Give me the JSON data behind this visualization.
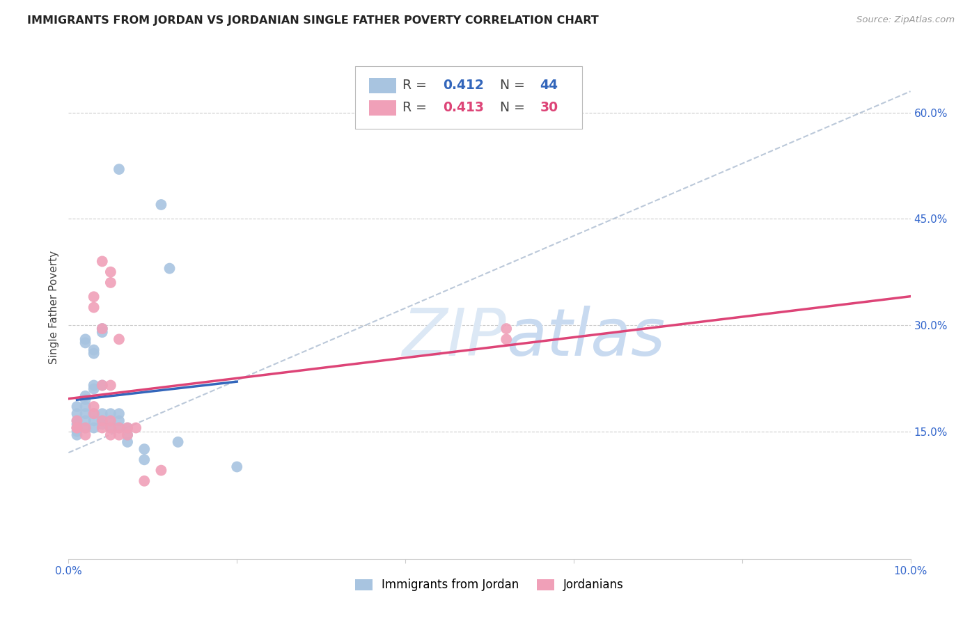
{
  "title": "IMMIGRANTS FROM JORDAN VS JORDANIAN SINGLE FATHER POVERTY CORRELATION CHART",
  "source": "Source: ZipAtlas.com",
  "ylabel": "Single Father Poverty",
  "legend_label_blue": "Immigrants from Jordan",
  "legend_label_pink": "Jordanians",
  "R_blue": 0.412,
  "N_blue": 44,
  "R_pink": 0.413,
  "N_pink": 30,
  "xlim": [
    0.0,
    0.1
  ],
  "ylim": [
    -0.03,
    0.68
  ],
  "x_ticks": [
    0.0,
    0.02,
    0.04,
    0.06,
    0.08,
    0.1
  ],
  "x_tick_labels": [
    "0.0%",
    "",
    "",
    "",
    "",
    "10.0%"
  ],
  "y_ticks": [
    0.15,
    0.3,
    0.45,
    0.6
  ],
  "y_tick_labels": [
    "15.0%",
    "30.0%",
    "45.0%",
    "60.0%"
  ],
  "blue_points": [
    [
      0.001,
      0.155
    ],
    [
      0.001,
      0.165
    ],
    [
      0.001,
      0.175
    ],
    [
      0.001,
      0.185
    ],
    [
      0.001,
      0.16
    ],
    [
      0.001,
      0.15
    ],
    [
      0.001,
      0.145
    ],
    [
      0.002,
      0.2
    ],
    [
      0.002,
      0.195
    ],
    [
      0.002,
      0.185
    ],
    [
      0.002,
      0.175
    ],
    [
      0.002,
      0.165
    ],
    [
      0.002,
      0.155
    ],
    [
      0.002,
      0.28
    ],
    [
      0.002,
      0.275
    ],
    [
      0.003,
      0.265
    ],
    [
      0.003,
      0.26
    ],
    [
      0.003,
      0.215
    ],
    [
      0.003,
      0.21
    ],
    [
      0.003,
      0.175
    ],
    [
      0.003,
      0.165
    ],
    [
      0.003,
      0.155
    ],
    [
      0.004,
      0.295
    ],
    [
      0.004,
      0.29
    ],
    [
      0.004,
      0.215
    ],
    [
      0.004,
      0.175
    ],
    [
      0.004,
      0.165
    ],
    [
      0.004,
      0.16
    ],
    [
      0.005,
      0.175
    ],
    [
      0.005,
      0.165
    ],
    [
      0.005,
      0.155
    ],
    [
      0.006,
      0.175
    ],
    [
      0.006,
      0.165
    ],
    [
      0.006,
      0.155
    ],
    [
      0.006,
      0.52
    ],
    [
      0.007,
      0.155
    ],
    [
      0.007,
      0.145
    ],
    [
      0.007,
      0.135
    ],
    [
      0.009,
      0.11
    ],
    [
      0.009,
      0.125
    ],
    [
      0.011,
      0.47
    ],
    [
      0.012,
      0.38
    ],
    [
      0.013,
      0.135
    ],
    [
      0.02,
      0.1
    ]
  ],
  "pink_points": [
    [
      0.001,
      0.155
    ],
    [
      0.001,
      0.165
    ],
    [
      0.001,
      0.155
    ],
    [
      0.002,
      0.155
    ],
    [
      0.002,
      0.145
    ],
    [
      0.003,
      0.34
    ],
    [
      0.003,
      0.325
    ],
    [
      0.003,
      0.185
    ],
    [
      0.003,
      0.175
    ],
    [
      0.004,
      0.165
    ],
    [
      0.004,
      0.155
    ],
    [
      0.004,
      0.295
    ],
    [
      0.004,
      0.215
    ],
    [
      0.004,
      0.39
    ],
    [
      0.005,
      0.375
    ],
    [
      0.005,
      0.36
    ],
    [
      0.005,
      0.215
    ],
    [
      0.005,
      0.165
    ],
    [
      0.005,
      0.155
    ],
    [
      0.005,
      0.145
    ],
    [
      0.006,
      0.155
    ],
    [
      0.006,
      0.145
    ],
    [
      0.006,
      0.28
    ],
    [
      0.007,
      0.155
    ],
    [
      0.007,
      0.145
    ],
    [
      0.008,
      0.155
    ],
    [
      0.009,
      0.08
    ],
    [
      0.011,
      0.095
    ],
    [
      0.052,
      0.295
    ],
    [
      0.052,
      0.28
    ]
  ],
  "blue_color": "#a8c4e0",
  "pink_color": "#f0a0b8",
  "blue_line_color": "#3366bb",
  "pink_line_color": "#dd4477",
  "dashed_line_color": "#aabbd0",
  "watermark_color": "#dce8f5",
  "background_color": "#ffffff",
  "grid_color": "#cccccc",
  "tick_label_color": "#3366cc"
}
